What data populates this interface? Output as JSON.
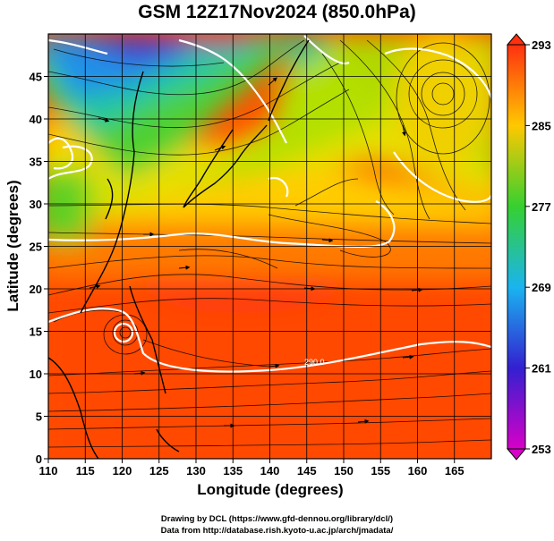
{
  "title": "GSM 12Z17Nov2024 (850.0hPa)",
  "credits": {
    "line1": "Drawing by DCL (https://www.gfd-dennou.org/library/dcl/)",
    "line2": "Data from http://database.rish.kyoto-u.ac.jp/arch/jmadata/"
  },
  "chart_data": {
    "type": "heatmap",
    "title": "GSM 12Z17Nov2024 (850.0hPa)",
    "xlabel": "Longitude (degrees)",
    "ylabel": "Latitude  (degrees)",
    "xlim": [
      110,
      170
    ],
    "ylim": [
      0,
      50
    ],
    "x_ticks": [
      110,
      115,
      120,
      125,
      130,
      135,
      140,
      145,
      150,
      155,
      160,
      165
    ],
    "y_ticks": [
      0,
      5,
      10,
      15,
      20,
      25,
      30,
      35,
      40,
      45
    ],
    "grid": true,
    "colorbar": {
      "min": 253,
      "max": 293,
      "labels": [
        253,
        261,
        269,
        277,
        285,
        293
      ],
      "colors": [
        "#d800c8",
        "#3320d0",
        "#1ab4f0",
        "#36d030",
        "#ffc800",
        "#ff3010"
      ]
    },
    "overlays": [
      "streamlines",
      "white contours",
      "coastlines"
    ],
    "contour_annotation": "290.0"
  }
}
